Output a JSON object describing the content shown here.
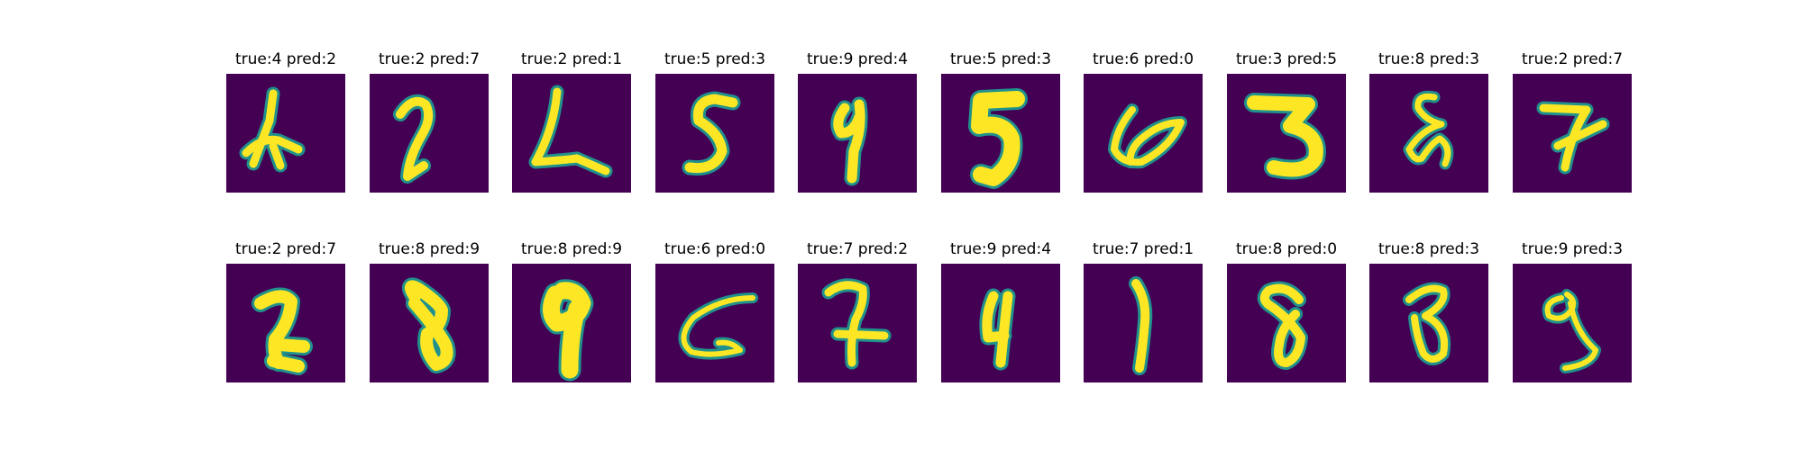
{
  "samples": [
    {
      "title": "true:4 pred:2",
      "digit_icon": "handwritten-digit-4-icon"
    },
    {
      "title": "true:2 pred:7",
      "digit_icon": "handwritten-digit-2-icon"
    },
    {
      "title": "true:2 pred:1",
      "digit_icon": "handwritten-digit-2-icon"
    },
    {
      "title": "true:5 pred:3",
      "digit_icon": "handwritten-digit-5-icon"
    },
    {
      "title": "true:9 pred:4",
      "digit_icon": "handwritten-digit-9-icon"
    },
    {
      "title": "true:5 pred:3",
      "digit_icon": "handwritten-digit-5-icon"
    },
    {
      "title": "true:6 pred:0",
      "digit_icon": "handwritten-digit-6-icon"
    },
    {
      "title": "true:3 pred:5",
      "digit_icon": "handwritten-digit-3-icon"
    },
    {
      "title": "true:8 pred:3",
      "digit_icon": "handwritten-digit-8-icon"
    },
    {
      "title": "true:2 pred:7",
      "digit_icon": "handwritten-digit-2-icon"
    },
    {
      "title": "true:2 pred:7",
      "digit_icon": "handwritten-digit-2-icon"
    },
    {
      "title": "true:8 pred:9",
      "digit_icon": "handwritten-digit-8-icon"
    },
    {
      "title": "true:8 pred:9",
      "digit_icon": "handwritten-digit-8-icon"
    },
    {
      "title": "true:6 pred:0",
      "digit_icon": "handwritten-digit-6-icon"
    },
    {
      "title": "true:7 pred:2",
      "digit_icon": "handwritten-digit-7-icon"
    },
    {
      "title": "true:9 pred:4",
      "digit_icon": "handwritten-digit-9-icon"
    },
    {
      "title": "true:7 pred:1",
      "digit_icon": "handwritten-digit-7-icon"
    },
    {
      "title": "true:8 pred:0",
      "digit_icon": "handwritten-digit-8-icon"
    },
    {
      "title": "true:8 pred:3",
      "digit_icon": "handwritten-digit-8-icon"
    },
    {
      "title": "true:9 pred:3",
      "digit_icon": "handwritten-digit-9-icon"
    }
  ],
  "colors": {
    "background": "#440154",
    "stroke": "#fde725",
    "edge": "#21918c"
  }
}
